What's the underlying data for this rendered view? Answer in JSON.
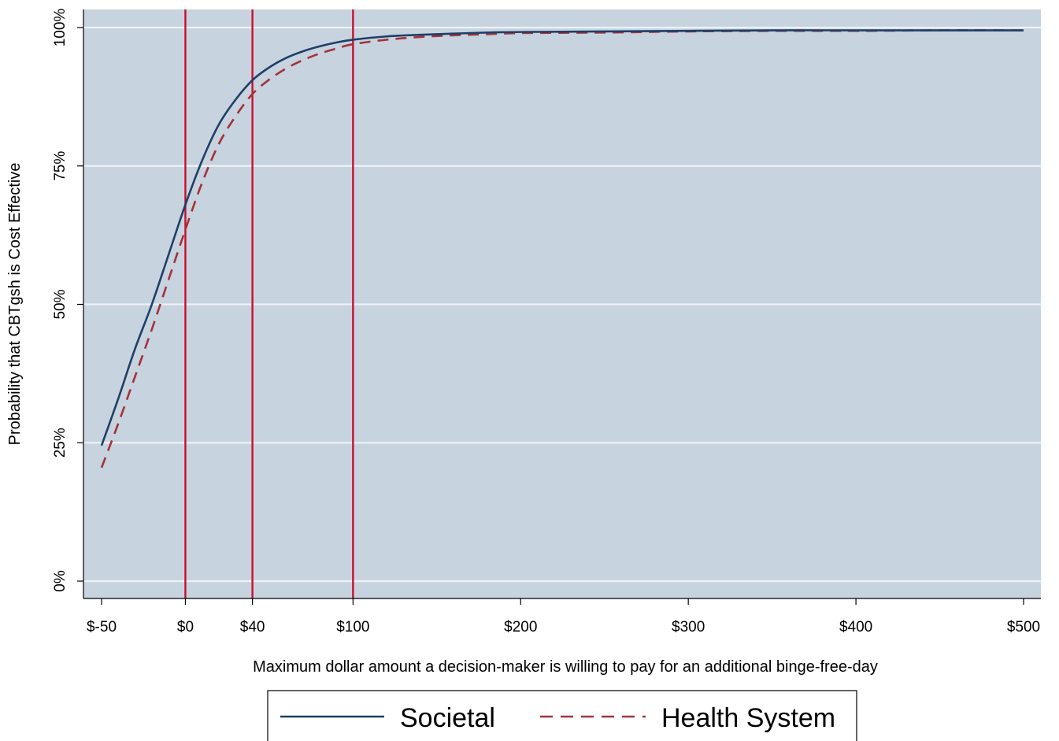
{
  "chart_data": {
    "type": "line",
    "xlabel": "Maximum dollar amount a decision-maker is willing to pay for an additional binge-free-day",
    "ylabel": "Probability that CBTgsh is Cost Effective",
    "xlim": [
      -50,
      500
    ],
    "ylim": [
      0,
      1
    ],
    "x_ticks": [
      {
        "value": -50,
        "label": "$-50"
      },
      {
        "value": 0,
        "label": "$0"
      },
      {
        "value": 40,
        "label": "$40"
      },
      {
        "value": 100,
        "label": "$100"
      },
      {
        "value": 200,
        "label": "$200"
      },
      {
        "value": 300,
        "label": "$300"
      },
      {
        "value": 400,
        "label": "$400"
      },
      {
        "value": 500,
        "label": "$500"
      }
    ],
    "y_ticks": [
      {
        "value": 0,
        "label": "0%"
      },
      {
        "value": 0.25,
        "label": "25%"
      },
      {
        "value": 0.5,
        "label": "50%"
      },
      {
        "value": 0.75,
        "label": "75%"
      },
      {
        "value": 1.0,
        "label": "100%"
      }
    ],
    "grid": true,
    "reference_lines_x": [
      0,
      40,
      100
    ],
    "reference_line_color": "#c8102e",
    "plot_background": "#c7d3df",
    "legend_position": "bottom",
    "series": [
      {
        "name": "Societal",
        "color": "#1f3f66",
        "dash": "solid",
        "x": [
          -50,
          -40,
          -30,
          -20,
          -10,
          0,
          10,
          20,
          30,
          40,
          50,
          60,
          70,
          80,
          90,
          100,
          120,
          140,
          160,
          180,
          200,
          250,
          300,
          350,
          400,
          450,
          500
        ],
        "y": [
          0.245,
          0.33,
          0.42,
          0.5,
          0.59,
          0.68,
          0.76,
          0.825,
          0.87,
          0.905,
          0.928,
          0.945,
          0.957,
          0.966,
          0.973,
          0.978,
          0.984,
          0.987,
          0.989,
          0.991,
          0.992,
          0.993,
          0.994,
          0.995,
          0.995,
          0.995,
          0.995
        ]
      },
      {
        "name": "Health System",
        "color": "#a3323a",
        "dash": "dashed",
        "x": [
          -50,
          -40,
          -30,
          -20,
          -10,
          0,
          10,
          20,
          30,
          40,
          50,
          60,
          70,
          80,
          90,
          100,
          120,
          140,
          160,
          180,
          200,
          250,
          300,
          350,
          400,
          450,
          500
        ],
        "y": [
          0.205,
          0.285,
          0.37,
          0.455,
          0.545,
          0.635,
          0.72,
          0.79,
          0.84,
          0.88,
          0.906,
          0.926,
          0.941,
          0.953,
          0.962,
          0.97,
          0.978,
          0.983,
          0.986,
          0.988,
          0.99,
          0.991,
          0.993,
          0.994,
          0.994,
          0.995,
          0.995
        ]
      }
    ]
  }
}
